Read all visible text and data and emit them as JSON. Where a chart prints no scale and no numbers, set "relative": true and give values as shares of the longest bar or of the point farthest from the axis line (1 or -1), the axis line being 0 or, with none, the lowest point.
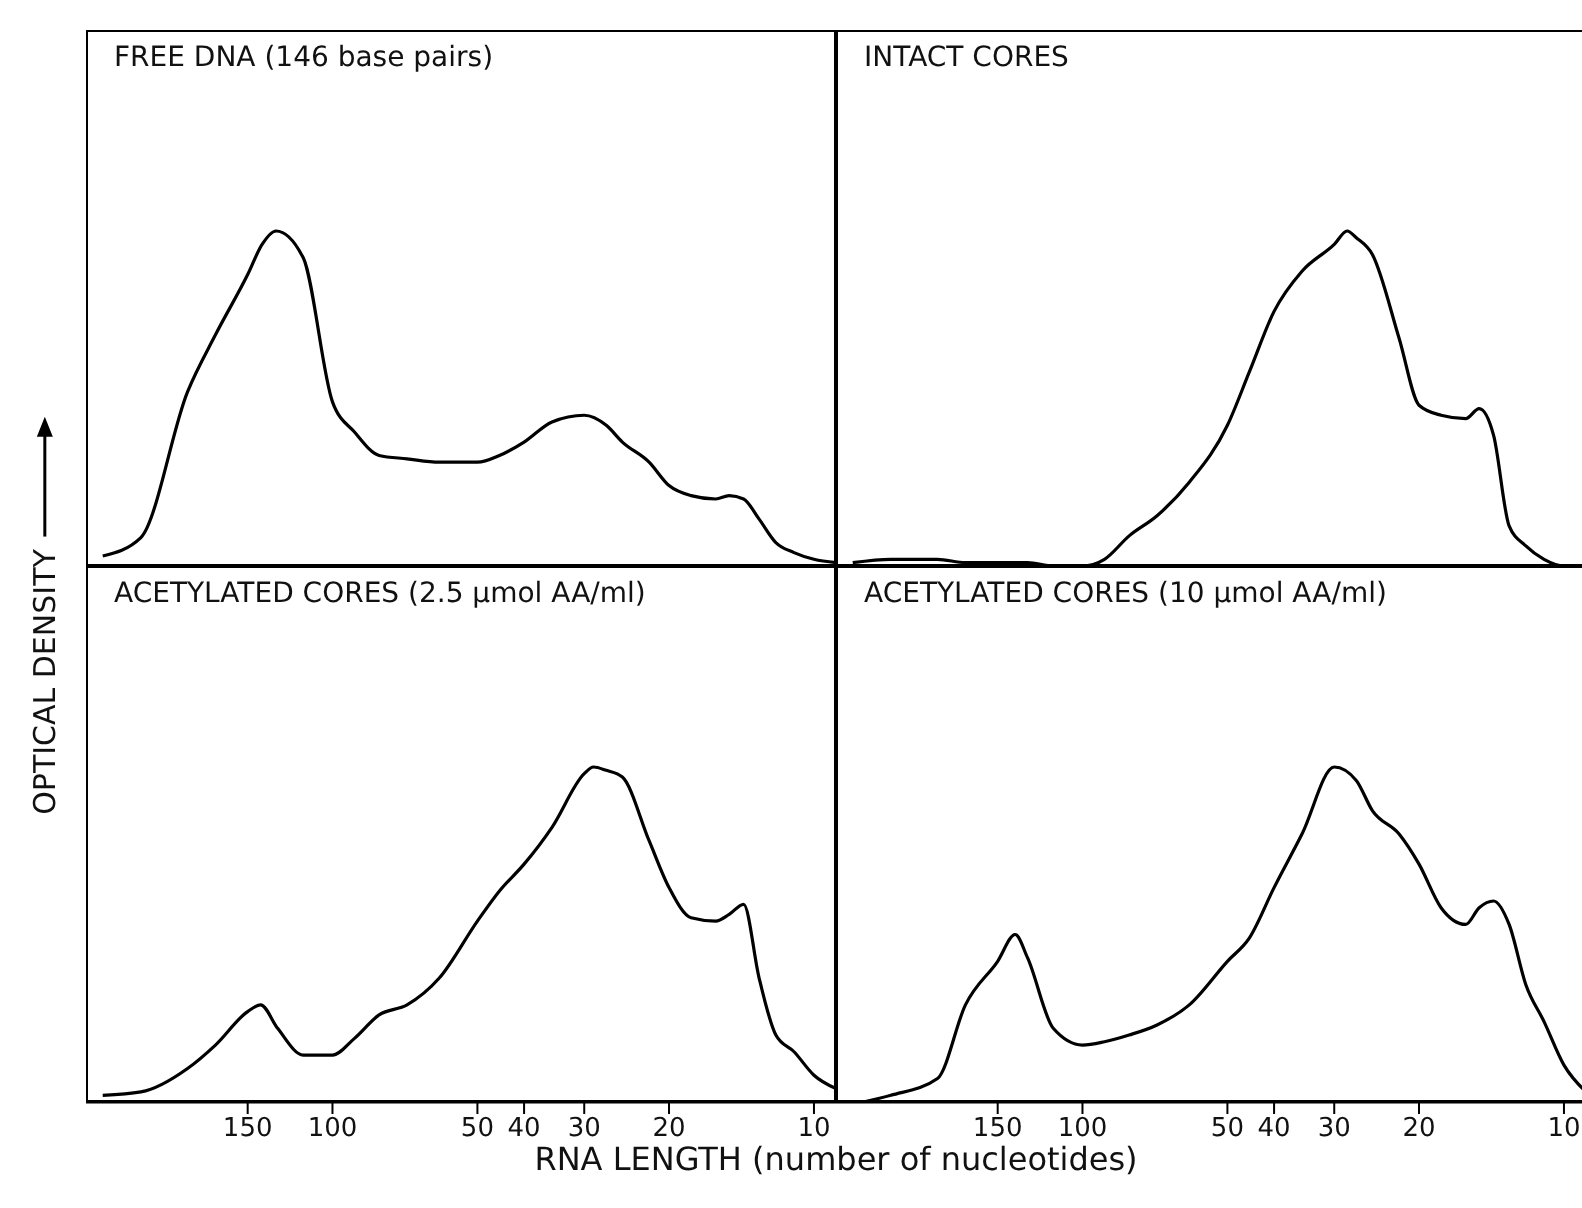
{
  "chart_data": [
    {
      "type": "line",
      "title": "FREE DNA (146 base pairs)",
      "ylabel": "OPTICAL DENSITY",
      "relative": true,
      "xlim": [
        325,
        9
      ],
      "xticks": [
        150,
        100,
        50,
        40,
        30,
        20,
        10
      ],
      "log": "x",
      "tick_labels": false,
      "x": [
        300,
        250,
        200,
        175,
        150,
        140,
        131,
        115,
        100,
        90,
        80,
        70,
        60,
        50,
        45,
        40,
        35,
        30,
        27,
        25,
        22,
        20,
        18,
        16,
        15,
        14,
        13,
        12,
        11,
        10,
        9
      ],
      "series": [
        {
          "color": "#000000",
          "values": [
            0.03,
            0.085,
            0.52,
            0.69,
            0.87,
            0.96,
            1,
            0.92,
            0.49,
            0.4,
            0.33,
            0.32,
            0.31,
            0.31,
            0.33,
            0.37,
            0.43,
            0.45,
            0.42,
            0.37,
            0.31,
            0.24,
            0.21,
            0.2,
            0.21,
            0.2,
            0.14,
            0.07,
            0.04,
            0.02,
            0.01
          ]
        }
      ]
    },
    {
      "type": "line",
      "title": "INTACT CORES",
      "relative": true,
      "xlim": [
        325,
        9
      ],
      "xticks": [
        150,
        100,
        50,
        40,
        30,
        20,
        10
      ],
      "log": "x",
      "tick_labels": false,
      "x": [
        300,
        250,
        200,
        175,
        150,
        130,
        115,
        100,
        90,
        80,
        70,
        60,
        50,
        45,
        40,
        35,
        30,
        28.2,
        27,
        25,
        22,
        20,
        18,
        16,
        15,
        14,
        13,
        12,
        11,
        10,
        9
      ],
      "series": [
        {
          "color": "#000000",
          "values": [
            0.01,
            0.02,
            0.02,
            0.01,
            0.01,
            0.01,
            0,
            0,
            0.02,
            0.09,
            0.15,
            0.25,
            0.42,
            0.58,
            0.76,
            0.88,
            0.96,
            1,
            0.98,
            0.93,
            0.68,
            0.48,
            0.45,
            0.44,
            0.47,
            0.39,
            0.12,
            0.06,
            0.02,
            0,
            0
          ]
        }
      ]
    },
    {
      "type": "line",
      "title": "ACETYLATED CORES (2.5 μmol AA/ml)",
      "xlabel": "RNA LENGTH (number of nucleotides)",
      "relative": true,
      "xlim": [
        325,
        9
      ],
      "xticks": [
        150,
        100,
        50,
        40,
        30,
        20,
        10
      ],
      "log": "x",
      "tick_labels": "x",
      "x": [
        300,
        250,
        200,
        175,
        150,
        141,
        130,
        115,
        100,
        90,
        80,
        70,
        60,
        50,
        45,
        40,
        35,
        30,
        28.7,
        27,
        25,
        22,
        20,
        18,
        16,
        15,
        14,
        13,
        12,
        11,
        10,
        9
      ],
      "series": [
        {
          "color": "#000000",
          "values": [
            0.02,
            0.03,
            0.1,
            0.17,
            0.27,
            0.29,
            0.22,
            0.14,
            0.14,
            0.19,
            0.26,
            0.29,
            0.37,
            0.54,
            0.63,
            0.71,
            0.82,
            0.98,
            1,
            0.99,
            0.97,
            0.78,
            0.64,
            0.55,
            0.54,
            0.56,
            0.59,
            0.37,
            0.2,
            0.15,
            0.08,
            0.04
          ]
        }
      ]
    },
    {
      "type": "line",
      "title": "ACETYLATED CORES (10 μmol AA/ml)",
      "relative": true,
      "xlim": [
        325,
        9
      ],
      "xticks": [
        150,
        100,
        50,
        40,
        30,
        20,
        10
      ],
      "log": "x",
      "tick_labels": "x",
      "x": [
        285,
        250,
        200,
        175,
        150,
        138,
        130,
        115,
        100,
        90,
        80,
        70,
        60,
        50,
        45,
        40,
        35,
        30,
        27,
        25,
        22,
        20,
        18,
        16,
        15,
        14,
        13,
        12,
        11,
        10,
        9
      ],
      "series": [
        {
          "color": "#000000",
          "values": [
            0,
            0.02,
            0.07,
            0.29,
            0.42,
            0.5,
            0.43,
            0.22,
            0.17,
            0.18,
            0.2,
            0.23,
            0.29,
            0.42,
            0.49,
            0.64,
            0.8,
            1,
            0.96,
            0.87,
            0.8,
            0.71,
            0.58,
            0.53,
            0.58,
            0.6,
            0.53,
            0.35,
            0.24,
            0.11,
            0.03
          ]
        }
      ]
    }
  ]
}
